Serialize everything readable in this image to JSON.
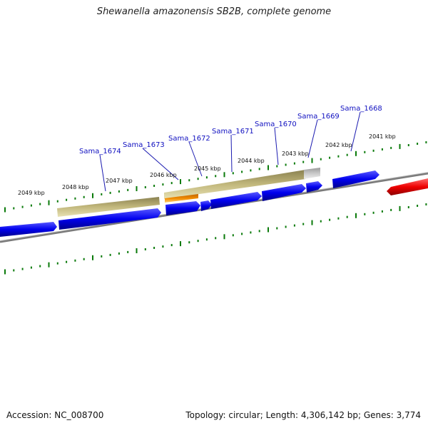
{
  "title": "Shewanella amazonensis SB2B, complete genome",
  "footer": {
    "accession": "Accession: NC_008700",
    "summary": "Topology: circular; Length: 4,306,142 bp; Genes: 3,774"
  },
  "kbp_labels": [
    "2049 kbp",
    "2048 kbp",
    "2047 kbp",
    "2046 kbp",
    "2045 kbp",
    "2044 kbp",
    "2043 kbp",
    "2042 kbp",
    "2041 kbp"
  ],
  "gene_labels": [
    "Sama_1674",
    "Sama_1673",
    "Sama_1672",
    "Sama_1671",
    "Sama_1670",
    "Sama_1669",
    "Sama_1668"
  ],
  "colors": {
    "cds": "#0000ee",
    "highlight": "#ee0000",
    "feature_olive": "#b7ad6a",
    "feature_orange": "#f08a00",
    "feature_grey": "#c4c4c4",
    "axis": "#8a8a8a",
    "tick": "#0a7a0a",
    "label": "#1010c0"
  }
}
